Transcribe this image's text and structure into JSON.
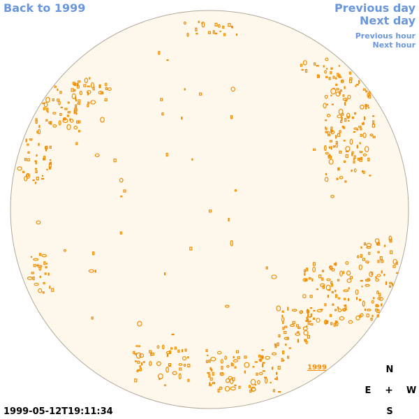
{
  "navigation": {
    "back_label": "Back to 1999",
    "previous_day_label": "Previous day",
    "next_day_label": "Next day",
    "previous_hour_label": "Previous hour",
    "next_hour_label": "Next hour"
  },
  "image": {
    "timestamp": "1999-05-12T19:11:34",
    "year_link_label": "1999"
  },
  "compass": {
    "north": "N",
    "south": "S",
    "east": "E",
    "west": "W",
    "center": "+"
  },
  "colors": {
    "link": "#6a96dc",
    "disk_fill": "#fef8ec",
    "disk_stroke": "#b0a898",
    "feature": "#f08c00"
  }
}
